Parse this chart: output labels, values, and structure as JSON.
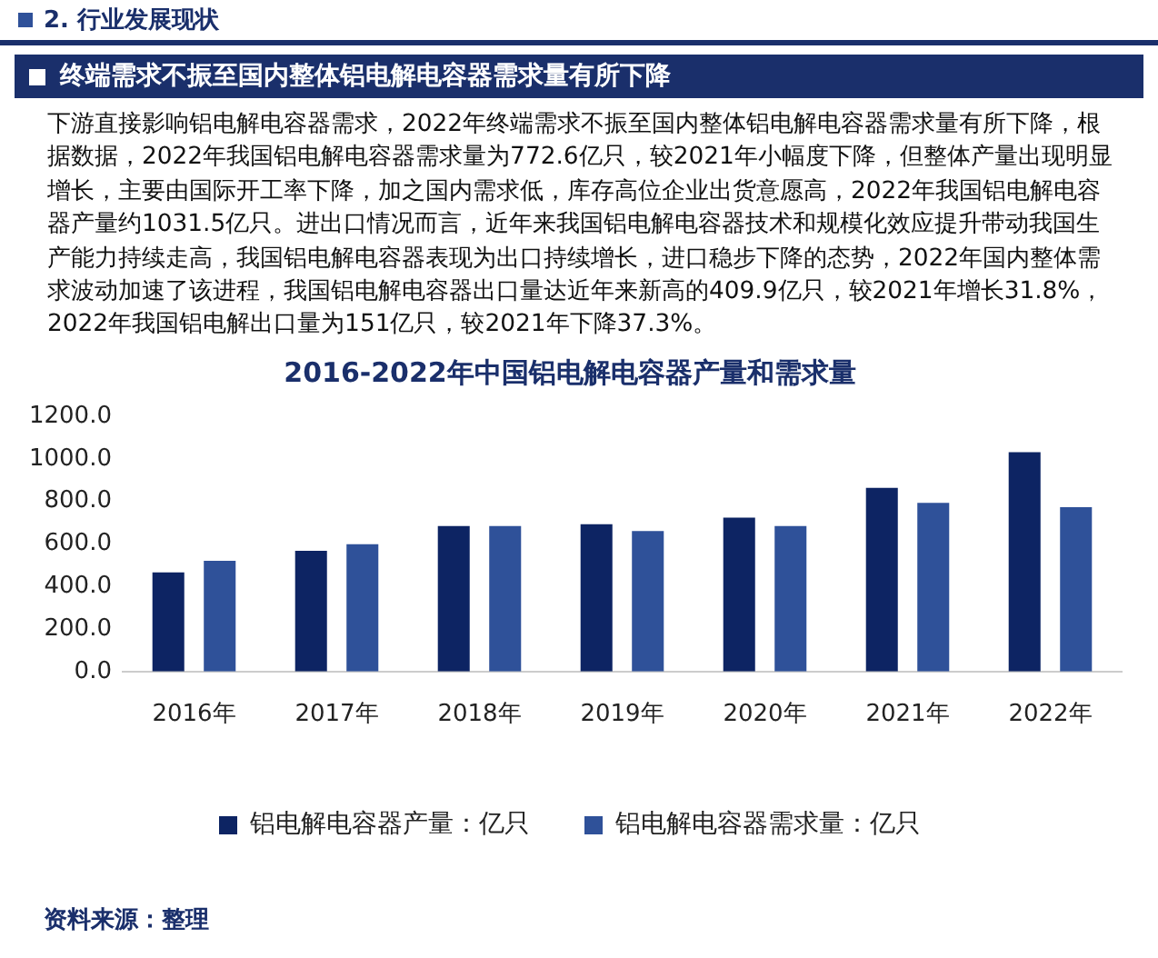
{
  "chart_data": {
    "type": "bar",
    "title": "2016-2022年中国铝电解电容器产量和需求量",
    "subtitle": "终端需求不振至国内整体铝电解电容器需求量有所下降",
    "annotations": [
      "2. 行业发展现状",
      "下游直接影响铝电解电容器需求，2022年终端需求不振至国内整体铝电解电容器需求量有所下降，根据数据，2022年我国铝电解电容器需求量为772.6亿只，较2021年小幅度下降，但整体产量出现明显增长，主要由国际开工率下降，加之国内需求低，库存高位企业出货意愿高，2022年我国铝电解电容器产量约1031.5亿只。进出口情况而言，近年来我国铝电解电容器技术和规模化效应提升带动我国生产能力持续走高，我国铝电解电容器表现为出口持续增长，进口稳步下降的态势，2022年国内整体需求波动加速了该进程，我国铝电解电容器出口量达近年来新高的409.9亿只，较2021年增长31.8%，2022年我国铝电解出口量为151亿只，较2021年下降37.3%。",
      "资料来源：整理"
    ],
    "categories": [
      "2016年",
      "2017年",
      "2018年",
      "2019年",
      "2020年",
      "2021年",
      "2022年"
    ],
    "series": [
      {
        "name": "铝电解电容器产量：亿只",
        "color": "#0d2463",
        "values": [
          466,
          567,
          684,
          692,
          723,
          863,
          1031.5
        ]
      },
      {
        "name": "铝电解电容器需求量：亿只",
        "color": "#2f5199",
        "values": [
          521,
          598,
          684,
          661,
          684,
          793,
          772.6
        ]
      }
    ],
    "ylim": [
      0,
      1200
    ],
    "yticks": [
      {
        "value": 0,
        "label": "0.0"
      },
      {
        "value": 200,
        "label": "200.0"
      },
      {
        "value": 400,
        "label": "400.0"
      },
      {
        "value": 600,
        "label": "600.0"
      },
      {
        "value": 800,
        "label": "800.0"
      },
      {
        "value": 1000,
        "label": "1000.0"
      },
      {
        "value": 1200,
        "label": "1200.0"
      }
    ],
    "grid": false,
    "legend": "bottom"
  }
}
